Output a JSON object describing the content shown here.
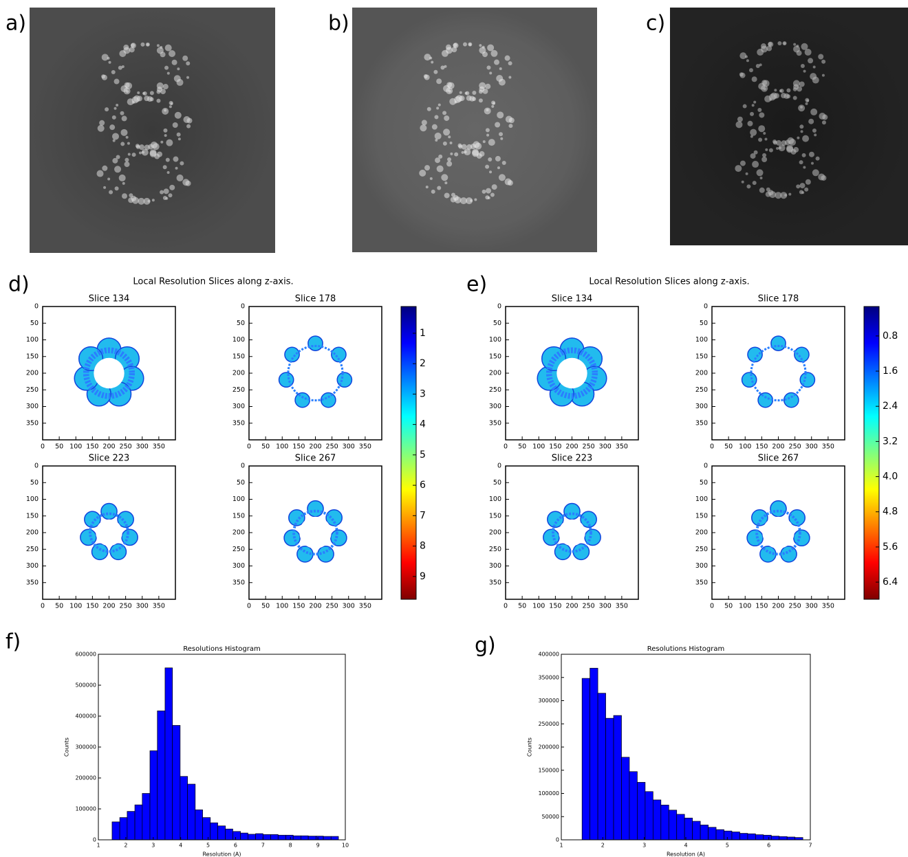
{
  "image_panels": [
    {
      "label": "a)"
    },
    {
      "label": "b)"
    },
    {
      "label": "c)"
    }
  ],
  "slice_panels": [
    {
      "label": "d)",
      "title": "Local Resolution Slices along z-axis.",
      "subplots": [
        "Slice 134",
        "Slice 178",
        "Slice 223",
        "Slice 267"
      ],
      "xlim": [
        0,
        400
      ],
      "ylim": [
        400,
        0
      ],
      "xticks": [
        0,
        50,
        100,
        150,
        200,
        250,
        300,
        350
      ],
      "yticks": [
        0,
        50,
        100,
        150,
        200,
        250,
        300,
        350
      ],
      "colorbar": {
        "colormap": "jet",
        "clim": [
          0.12,
          9.75
        ],
        "ticks": [
          1,
          2,
          3,
          4,
          5,
          6,
          7,
          8,
          9
        ]
      }
    },
    {
      "label": "e)",
      "title": "Local Resolution Slices along z-axis.",
      "subplots": [
        "Slice 134",
        "Slice 178",
        "Slice 223",
        "Slice 267"
      ],
      "xlim": [
        0,
        400
      ],
      "ylim": [
        400,
        0
      ],
      "xticks": [
        0,
        50,
        100,
        150,
        200,
        250,
        300,
        350
      ],
      "yticks": [
        0,
        50,
        100,
        150,
        200,
        250,
        300,
        350
      ],
      "colorbar": {
        "colormap": "jet",
        "clim": [
          0.13,
          6.79
        ],
        "ticks": [
          0.8,
          1.6,
          2.4,
          3.2,
          {
            "value": 4,
            "label": "4.0"
          },
          4.8,
          5.6,
          6.4
        ]
      }
    }
  ],
  "chart_data": [
    {
      "type": "histogram",
      "label": "f)",
      "title": "Resolutions Histogram",
      "xlabel": "Resolution (A)",
      "ylabel": "Counts",
      "color": "#0000ff",
      "bins": [
        1.5,
        1.78,
        2.05,
        2.33,
        2.6,
        2.88,
        3.15,
        3.43,
        3.7,
        3.98,
        4.25,
        4.53,
        4.8,
        5.08,
        5.35,
        5.63,
        5.9,
        6.18,
        6.45,
        6.73,
        7.0,
        7.28,
        7.55,
        7.83,
        8.1,
        8.38,
        8.65,
        8.93,
        9.2,
        9.48,
        9.75
      ],
      "values": [
        58000,
        72000,
        92000,
        113000,
        150000,
        288000,
        417000,
        556000,
        370000,
        205000,
        180000,
        97000,
        72000,
        55000,
        45000,
        35000,
        27000,
        22000,
        18000,
        20000,
        17000,
        17000,
        15000,
        15000,
        13000,
        13000,
        12000,
        12000,
        11000,
        11000
      ],
      "xlim": [
        1,
        10
      ],
      "xticks": [
        1,
        2,
        3,
        4,
        5,
        6,
        7,
        8,
        9,
        10
      ],
      "ylim": [
        0,
        600000
      ],
      "yticks": [
        0,
        100000,
        200000,
        300000,
        400000,
        500000,
        600000
      ]
    },
    {
      "type": "histogram",
      "label": "g)",
      "title": "Resolutions Histogram",
      "xlabel": "Resolution (A)",
      "ylabel": "Counts",
      "color": "#0000ff",
      "bins": [
        1.5,
        1.69,
        1.88,
        2.07,
        2.26,
        2.45,
        2.64,
        2.83,
        3.02,
        3.21,
        3.4,
        3.59,
        3.78,
        3.97,
        4.16,
        4.35,
        4.54,
        4.73,
        4.92,
        5.11,
        5.3,
        5.49,
        5.68,
        5.87,
        6.06,
        6.25,
        6.44,
        6.63,
        6.82
      ],
      "values": [
        348000,
        370000,
        316000,
        262000,
        268000,
        178000,
        147000,
        124000,
        104000,
        86000,
        75000,
        64000,
        55000,
        47000,
        40000,
        32000,
        27000,
        22000,
        19000,
        17000,
        14000,
        13000,
        11000,
        10000,
        8000,
        7000,
        6000,
        5000
      ],
      "xlim": [
        1,
        7
      ],
      "xticks": [
        1,
        2,
        3,
        4,
        5,
        6,
        7
      ],
      "ylim": [
        0,
        400000
      ],
      "yticks": [
        0,
        50000,
        100000,
        150000,
        200000,
        250000,
        300000,
        350000,
        400000
      ]
    }
  ]
}
